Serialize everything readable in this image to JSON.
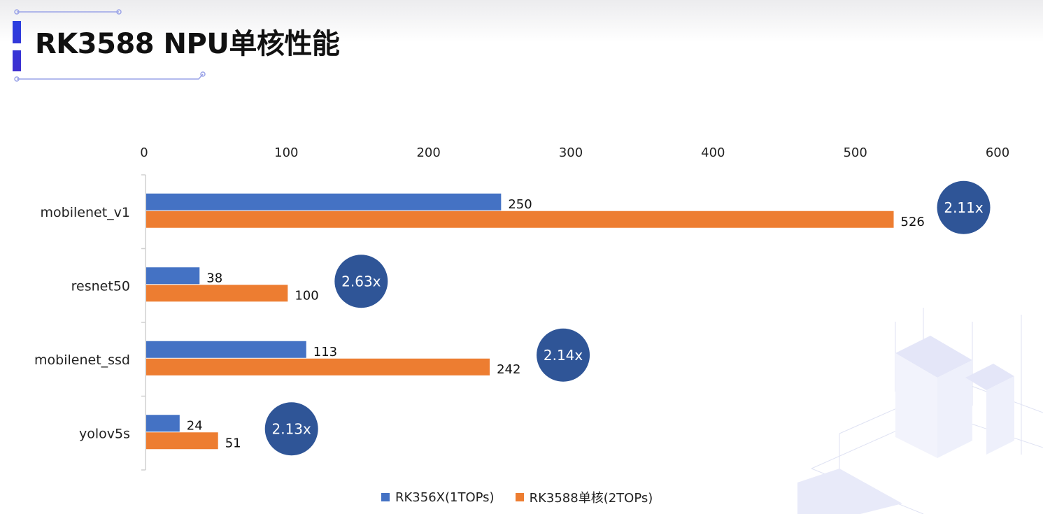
{
  "page": {
    "title": "RK3588 NPU单核性能"
  },
  "colors": {
    "series_1": "#4472c4",
    "series_2": "#ed7d31",
    "ratio_badge": "#2f5597",
    "accent": "#2f3ee0"
  },
  "chart_data": {
    "type": "bar",
    "orientation": "horizontal",
    "title": "",
    "xlabel": "",
    "ylabel": "",
    "xlim": [
      0,
      600
    ],
    "x_ticks": [
      "0",
      "100",
      "200",
      "300",
      "400",
      "500",
      "600"
    ],
    "x_axis_position": "top",
    "grid": false,
    "legend_position": "bottom",
    "categories": [
      "mobilenet_v1",
      "resnet50",
      "mobilenet_ssd",
      "yolov5s"
    ],
    "series": [
      {
        "name": "RK356X(1TOPs)",
        "values": [
          250,
          38,
          113,
          24
        ]
      },
      {
        "name": "RK3588单核(2TOPs)",
        "values": [
          526,
          100,
          242,
          51
        ]
      }
    ],
    "annotations": [
      "2.11x",
      "2.63x",
      "2.14x",
      "2.13x"
    ]
  }
}
